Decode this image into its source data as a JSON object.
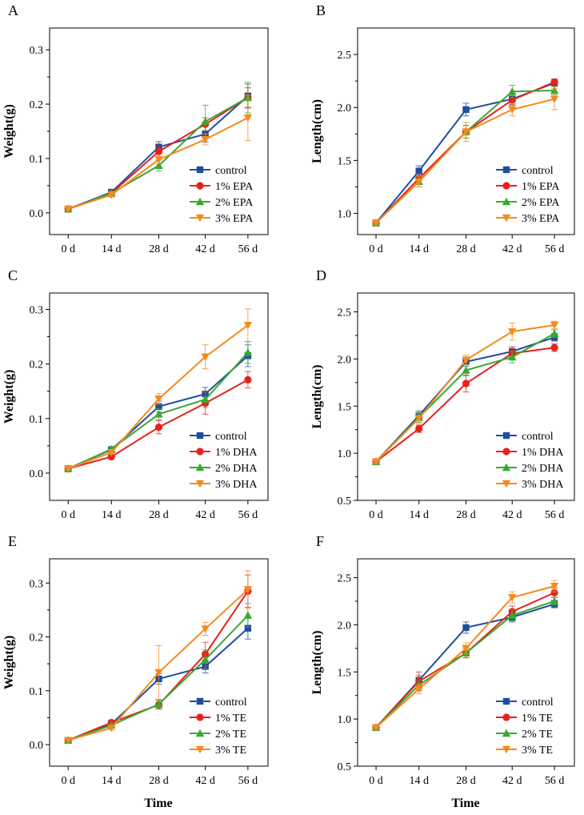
{
  "colors": {
    "control": "#1f4e9e",
    "low": "#e8211d",
    "mid": "#3aa832",
    "high": "#f58a1f"
  },
  "x_axis_title": "Time",
  "chart_data": [
    {
      "panel": "A",
      "type": "line",
      "categories": [
        "0 d",
        "14 d",
        "28 d",
        "42 d",
        "56 d"
      ],
      "ylabel": "Weight(g)",
      "ylim": [
        -0.04,
        0.34
      ],
      "yticks": [
        "0.0",
        "0.1",
        "0.2",
        "0.3"
      ],
      "ytick_values": [
        0,
        0.1,
        0.2,
        0.3
      ],
      "legend": "bottom-right",
      "series": [
        {
          "name": "control",
          "marker": "square",
          "color_key": "control",
          "values": [
            0.007,
            0.038,
            0.121,
            0.145,
            0.215
          ],
          "errors": [
            0.002,
            0.004,
            0.01,
            0.015,
            0.022
          ]
        },
        {
          "name": "1% EPA",
          "marker": "circle",
          "color_key": "low",
          "values": [
            0.007,
            0.036,
            0.113,
            0.163,
            0.212
          ],
          "errors": [
            0.002,
            0.004,
            0.01,
            0.012,
            0.018
          ]
        },
        {
          "name": "2% EPA",
          "marker": "triangle-up",
          "color_key": "mid",
          "values": [
            0.007,
            0.036,
            0.087,
            0.168,
            0.212
          ],
          "errors": [
            0.002,
            0.004,
            0.01,
            0.03,
            0.028
          ]
        },
        {
          "name": "3% EPA",
          "marker": "triangle-down",
          "color_key": "high",
          "values": [
            0.007,
            0.033,
            0.098,
            0.135,
            0.175
          ],
          "errors": [
            0.002,
            0.004,
            0.008,
            0.01,
            0.042
          ]
        }
      ]
    },
    {
      "panel": "B",
      "type": "line",
      "categories": [
        "0 d",
        "14 d",
        "28 d",
        "42 d",
        "56 d"
      ],
      "ylabel": "Length(cm)",
      "ylim": [
        0.8,
        2.75
      ],
      "yticks": [
        "1.0",
        "1.5",
        "2.0",
        "2.5"
      ],
      "ytick_values": [
        1.0,
        1.5,
        2.0,
        2.5
      ],
      "legend": "bottom-right",
      "series": [
        {
          "name": "control",
          "marker": "square",
          "color_key": "control",
          "values": [
            0.91,
            1.4,
            1.98,
            2.08,
            2.23
          ],
          "errors": [
            0.01,
            0.05,
            0.06,
            0.05,
            0.03
          ]
        },
        {
          "name": "1% EPA",
          "marker": "circle",
          "color_key": "low",
          "values": [
            0.91,
            1.33,
            1.77,
            2.07,
            2.24
          ],
          "errors": [
            0.01,
            0.05,
            0.06,
            0.05,
            0.03
          ]
        },
        {
          "name": "2% EPA",
          "marker": "triangle-up",
          "color_key": "mid",
          "values": [
            0.91,
            1.3,
            1.77,
            2.15,
            2.16
          ],
          "errors": [
            0.01,
            0.05,
            0.06,
            0.06,
            0.04
          ]
        },
        {
          "name": "3% EPA",
          "marker": "triangle-down",
          "color_key": "high",
          "values": [
            0.91,
            1.3,
            1.77,
            1.98,
            2.08
          ],
          "errors": [
            0.01,
            0.05,
            0.09,
            0.06,
            0.1
          ]
        }
      ]
    },
    {
      "panel": "C",
      "type": "line",
      "categories": [
        "0 d",
        "14 d",
        "28 d",
        "42 d",
        "56 d"
      ],
      "ylabel": "Weight(g)",
      "ylim": [
        -0.05,
        0.33
      ],
      "yticks": [
        "0.0",
        "0.1",
        "0.2",
        "0.3"
      ],
      "ytick_values": [
        0,
        0.1,
        0.2,
        0.3
      ],
      "legend": "bottom-right",
      "series": [
        {
          "name": "control",
          "marker": "square",
          "color_key": "control",
          "values": [
            0.008,
            0.043,
            0.122,
            0.145,
            0.215
          ],
          "errors": [
            0.002,
            0.004,
            0.01,
            0.012,
            0.02
          ]
        },
        {
          "name": "1% DHA",
          "marker": "circle",
          "color_key": "low",
          "values": [
            0.008,
            0.03,
            0.084,
            0.128,
            0.171
          ],
          "errors": [
            0.002,
            0.004,
            0.012,
            0.02,
            0.015
          ]
        },
        {
          "name": "2% DHA",
          "marker": "triangle-up",
          "color_key": "mid",
          "values": [
            0.008,
            0.044,
            0.108,
            0.135,
            0.221
          ],
          "errors": [
            0.002,
            0.004,
            0.01,
            0.015,
            0.02
          ]
        },
        {
          "name": "3% DHA",
          "marker": "triangle-down",
          "color_key": "high",
          "values": [
            0.008,
            0.038,
            0.136,
            0.213,
            0.271
          ],
          "errors": [
            0.002,
            0.004,
            0.01,
            0.022,
            0.03
          ]
        }
      ]
    },
    {
      "panel": "D",
      "type": "line",
      "categories": [
        "0 d",
        "14 d",
        "28 d",
        "42 d",
        "56 d"
      ],
      "ylabel": "Length(cm)",
      "ylim": [
        0.5,
        2.7
      ],
      "yticks": [
        "0.5",
        "1.0",
        "1.5",
        "2.0",
        "2.5"
      ],
      "ytick_values": [
        0.5,
        1.0,
        1.5,
        2.0,
        2.5
      ],
      "legend": "bottom-right",
      "series": [
        {
          "name": "control",
          "marker": "square",
          "color_key": "control",
          "values": [
            0.91,
            1.4,
            1.97,
            2.08,
            2.23
          ],
          "errors": [
            0.01,
            0.05,
            0.05,
            0.05,
            0.04
          ]
        },
        {
          "name": "1% DHA",
          "marker": "circle",
          "color_key": "low",
          "values": [
            0.91,
            1.26,
            1.74,
            2.06,
            2.12
          ],
          "errors": [
            0.01,
            0.04,
            0.09,
            0.05,
            0.04
          ]
        },
        {
          "name": "2% DHA",
          "marker": "triangle-up",
          "color_key": "mid",
          "values": [
            0.91,
            1.38,
            1.88,
            2.02,
            2.27
          ],
          "errors": [
            0.01,
            0.05,
            0.06,
            0.06,
            0.04
          ]
        },
        {
          "name": "3% DHA",
          "marker": "triangle-down",
          "color_key": "high",
          "values": [
            0.91,
            1.37,
            1.99,
            2.29,
            2.36
          ],
          "errors": [
            0.01,
            0.05,
            0.05,
            0.09,
            0.04
          ]
        }
      ]
    },
    {
      "panel": "E",
      "type": "line",
      "categories": [
        "0 d",
        "14 d",
        "28 d",
        "42 d",
        "56 d"
      ],
      "ylabel": "Weight(g)",
      "ylim": [
        -0.04,
        0.345
      ],
      "yticks": [
        "0.0",
        "0.1",
        "0.2",
        "0.3"
      ],
      "ytick_values": [
        0,
        0.1,
        0.2,
        0.3
      ],
      "legend": "bottom-right",
      "series": [
        {
          "name": "control",
          "marker": "square",
          "color_key": "control",
          "values": [
            0.008,
            0.038,
            0.122,
            0.145,
            0.216
          ],
          "errors": [
            0.002,
            0.004,
            0.01,
            0.012,
            0.02
          ]
        },
        {
          "name": "1% TE",
          "marker": "circle",
          "color_key": "low",
          "values": [
            0.008,
            0.041,
            0.074,
            0.168,
            0.285
          ],
          "errors": [
            0.002,
            0.004,
            0.008,
            0.022,
            0.03
          ]
        },
        {
          "name": "2% TE",
          "marker": "triangle-up",
          "color_key": "mid",
          "values": [
            0.008,
            0.036,
            0.075,
            0.158,
            0.24
          ],
          "errors": [
            0.002,
            0.004,
            0.008,
            0.018,
            0.022
          ]
        },
        {
          "name": "3% TE",
          "marker": "triangle-down",
          "color_key": "high",
          "values": [
            0.008,
            0.031,
            0.134,
            0.215,
            0.288
          ],
          "errors": [
            0.002,
            0.004,
            0.05,
            0.012,
            0.035
          ]
        }
      ]
    },
    {
      "panel": "F",
      "type": "line",
      "categories": [
        "0 d",
        "14 d",
        "28 d",
        "42 d",
        "56 d"
      ],
      "ylabel": "Length(cm)",
      "ylim": [
        0.5,
        2.7
      ],
      "yticks": [
        "0.5",
        "1.0",
        "1.5",
        "2.0",
        "2.5"
      ],
      "ytick_values": [
        0.5,
        1.0,
        1.5,
        2.0,
        2.5
      ],
      "legend": "bottom-right",
      "series": [
        {
          "name": "control",
          "marker": "square",
          "color_key": "control",
          "values": [
            0.91,
            1.41,
            1.97,
            2.08,
            2.22
          ],
          "errors": [
            0.01,
            0.05,
            0.06,
            0.05,
            0.04
          ]
        },
        {
          "name": "1% TE",
          "marker": "circle",
          "color_key": "low",
          "values": [
            0.91,
            1.4,
            1.7,
            2.14,
            2.34
          ],
          "errors": [
            0.01,
            0.1,
            0.05,
            0.06,
            0.05
          ]
        },
        {
          "name": "2% TE",
          "marker": "triangle-up",
          "color_key": "mid",
          "values": [
            0.91,
            1.36,
            1.7,
            2.1,
            2.25
          ],
          "errors": [
            0.01,
            0.05,
            0.05,
            0.06,
            0.04
          ]
        },
        {
          "name": "3% TE",
          "marker": "triangle-down",
          "color_key": "high",
          "values": [
            0.91,
            1.32,
            1.75,
            2.29,
            2.41
          ],
          "errors": [
            0.01,
            0.05,
            0.06,
            0.06,
            0.06
          ]
        }
      ]
    }
  ]
}
